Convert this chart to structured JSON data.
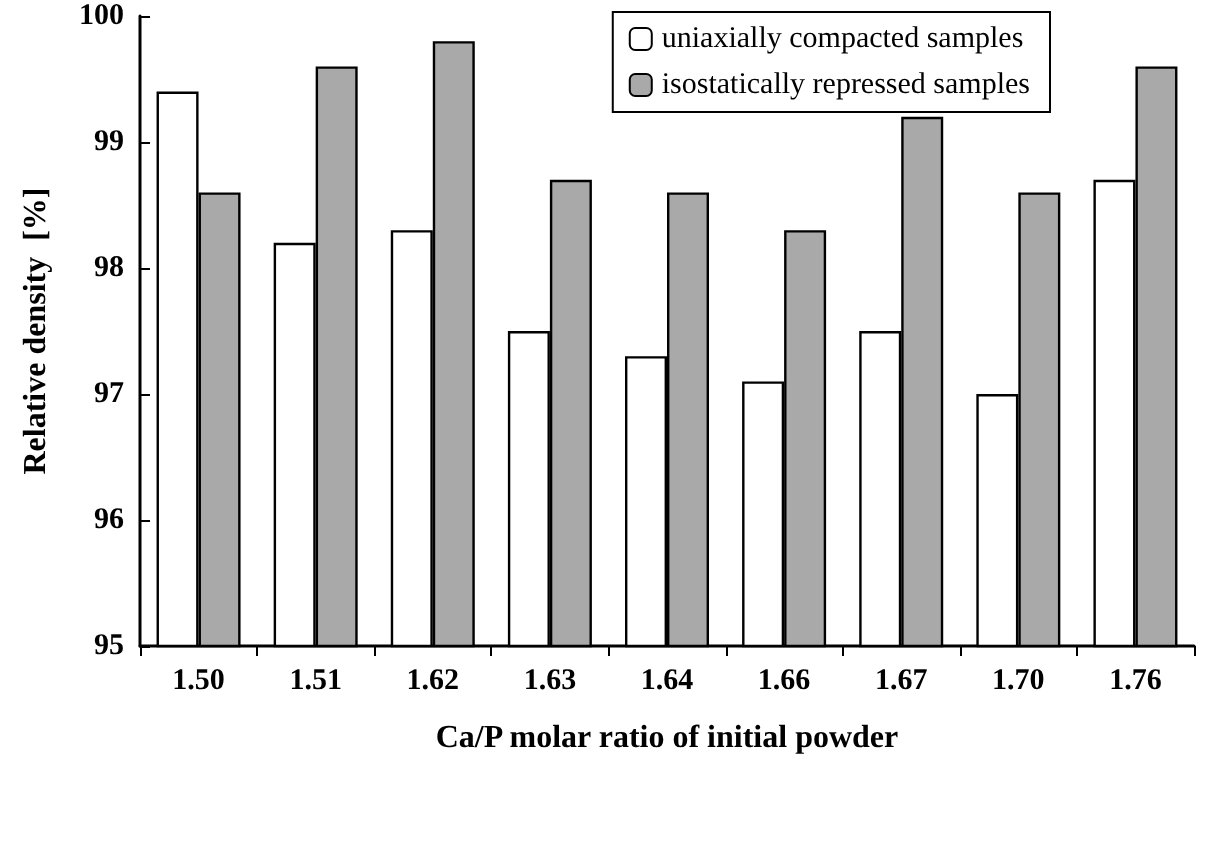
{
  "chart_data": {
    "type": "bar",
    "xlabel": "Ca/P molar ratio of initial powder",
    "ylabel": "Relative density  [%]",
    "categories": [
      "1.50",
      "1.51",
      "1.62",
      "1.63",
      "1.64",
      "1.66",
      "1.67",
      "1.70",
      "1.76"
    ],
    "series": [
      {
        "name": "uniaxially compacted samples",
        "color": "#ffffff",
        "values": [
          99.4,
          98.2,
          98.3,
          97.5,
          97.3,
          97.1,
          97.5,
          97.0,
          98.7
        ]
      },
      {
        "name": "isostatically repressed samples",
        "color": "#a9a9a9",
        "values": [
          98.6,
          99.6,
          99.8,
          98.7,
          98.6,
          98.3,
          99.2,
          98.6,
          99.6
        ]
      }
    ],
    "ylim": [
      95,
      100
    ],
    "yticks": [
      95,
      96,
      97,
      98,
      99,
      100
    ],
    "grid": false,
    "legend": "top right"
  }
}
